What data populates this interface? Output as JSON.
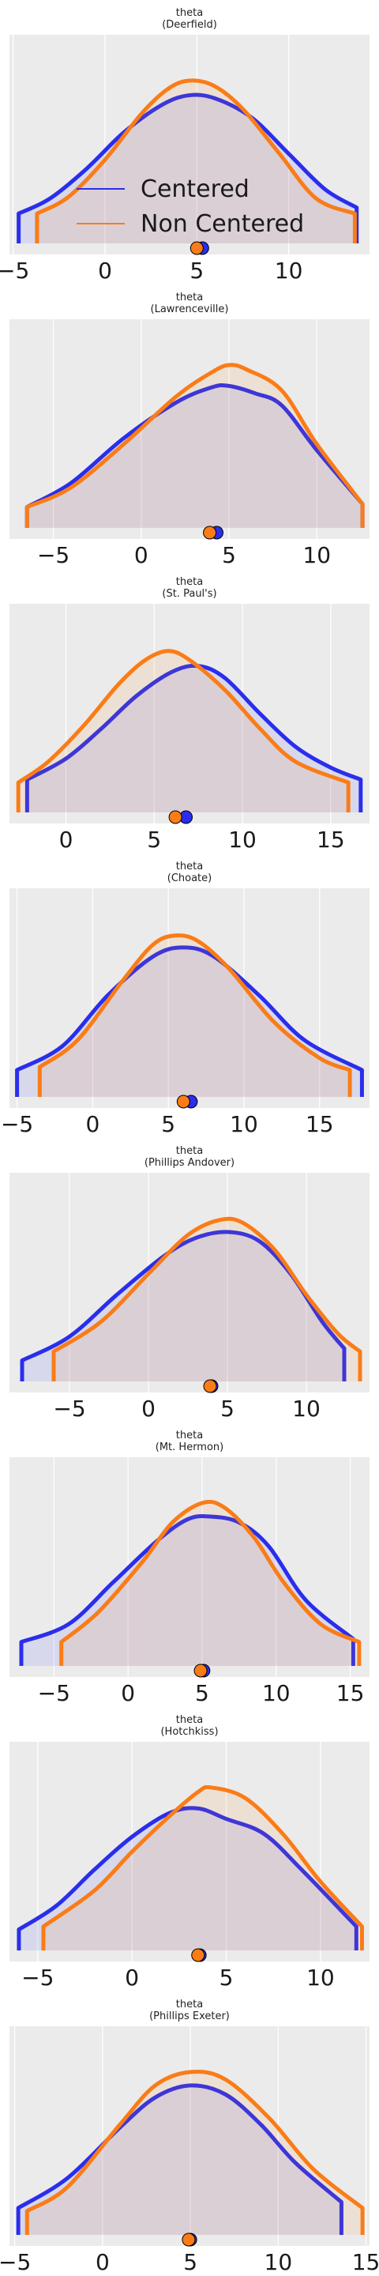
{
  "chart_data": [
    {
      "type": "area",
      "title": "theta",
      "subtitle": "(Deerfield)",
      "xlim": [
        -5.2,
        14.4
      ],
      "xticks": [
        -5,
        0,
        5,
        10
      ],
      "legend": {
        "location": "center-left",
        "entries": [
          "Centered",
          "Non Centered"
        ]
      },
      "series": [
        {
          "name": "Centered",
          "color": "#2a2eec",
          "range": [
            -4.7,
            13.7
          ],
          "mean": 5.3,
          "x": [
            -4.7,
            -3,
            -1,
            1,
            3,
            4.5,
            6,
            8,
            10,
            12,
            13.7
          ],
          "density": [
            0.2,
            0.3,
            0.5,
            0.74,
            0.92,
            0.99,
            0.97,
            0.84,
            0.6,
            0.36,
            0.24
          ]
        },
        {
          "name": "Non Centered",
          "color": "#fa7c17",
          "range": [
            -3.7,
            13.6
          ],
          "mean": 5.0,
          "x": [
            -3.7,
            -2,
            0,
            2,
            3.5,
            4.7,
            6,
            7.5,
            9.5,
            11.5,
            13.6
          ],
          "density": [
            0.2,
            0.31,
            0.56,
            0.87,
            1.04,
            1.09,
            1.05,
            0.9,
            0.6,
            0.3,
            0.2
          ]
        }
      ]
    },
    {
      "type": "area",
      "title": "theta",
      "subtitle": "(Lawrenceville)",
      "xlim": [
        -7.5,
        13.0
      ],
      "xticks": [
        -5,
        0,
        5,
        10
      ],
      "series": [
        {
          "name": "Centered",
          "color": "#2a2eec",
          "range": [
            -6.5,
            12.6
          ],
          "mean": 4.3,
          "x": [
            -6.5,
            -4,
            -1,
            2,
            4,
            5,
            6.5,
            8,
            10,
            12.6
          ],
          "density": [
            0.14,
            0.3,
            0.6,
            0.84,
            0.94,
            0.95,
            0.9,
            0.82,
            0.52,
            0.16
          ]
        },
        {
          "name": "Non Centered",
          "color": "#fa7c17",
          "range": [
            -6.5,
            12.6
          ],
          "mean": 3.9,
          "x": [
            -6.5,
            -4,
            -1,
            2,
            4,
            5,
            6,
            8,
            10,
            12.6
          ],
          "density": [
            0.14,
            0.27,
            0.56,
            0.88,
            1.04,
            1.09,
            1.06,
            0.92,
            0.56,
            0.16
          ]
        }
      ]
    },
    {
      "type": "area",
      "title": "theta",
      "subtitle": "(St. Paul's)",
      "xlim": [
        -3.2,
        17.2
      ],
      "xticks": [
        0,
        5,
        10,
        15
      ],
      "series": [
        {
          "name": "Centered",
          "color": "#2a2eec",
          "range": [
            -2.2,
            16.7
          ],
          "mean": 6.8,
          "x": [
            -2.2,
            0,
            2,
            4,
            6,
            7.5,
            9,
            11,
            13,
            15,
            16.7
          ],
          "density": [
            0.22,
            0.36,
            0.56,
            0.78,
            0.94,
            0.98,
            0.9,
            0.66,
            0.44,
            0.3,
            0.22
          ]
        },
        {
          "name": "Non Centered",
          "color": "#fa7c17",
          "range": [
            -2.7,
            16.0
          ],
          "mean": 6.2,
          "x": [
            -2.7,
            -1,
            1,
            3,
            4.5,
            5.8,
            7,
            9,
            11,
            13,
            16
          ],
          "density": [
            0.2,
            0.34,
            0.58,
            0.86,
            1.02,
            1.08,
            1.02,
            0.82,
            0.56,
            0.34,
            0.2
          ]
        }
      ]
    },
    {
      "type": "area",
      "title": "theta",
      "subtitle": "(Choate)",
      "xlim": [
        -5.5,
        18.3
      ],
      "xticks": [
        -5,
        0,
        5,
        10,
        15
      ],
      "series": [
        {
          "name": "Centered",
          "color": "#2a2eec",
          "range": [
            -5.0,
            17.8
          ],
          "mean": 6.5,
          "x": [
            -5,
            -2,
            1,
            4,
            6,
            8,
            11,
            14,
            17.8
          ],
          "density": [
            0.18,
            0.34,
            0.68,
            0.94,
            1.0,
            0.94,
            0.68,
            0.38,
            0.18
          ]
        },
        {
          "name": "Non Centered",
          "color": "#fa7c17",
          "range": [
            -3.5,
            17.0
          ],
          "mean": 6.0,
          "x": [
            -3.5,
            -1,
            2,
            4,
            5.5,
            7,
            9,
            12,
            15,
            17
          ],
          "density": [
            0.2,
            0.38,
            0.78,
            1.02,
            1.08,
            1.04,
            0.86,
            0.5,
            0.26,
            0.18
          ]
        }
      ]
    },
    {
      "type": "area",
      "title": "theta",
      "subtitle": "(Phillips Andover)",
      "xlim": [
        -8.8,
        14.0
      ],
      "xticks": [
        -5,
        0,
        5,
        10
      ],
      "series": [
        {
          "name": "Centered",
          "color": "#2a2eec",
          "range": [
            -8.0,
            12.4
          ],
          "mean": 4.0,
          "x": [
            -8,
            -5,
            -2,
            1,
            3,
            5,
            7,
            9,
            11,
            12.4
          ],
          "density": [
            0.14,
            0.3,
            0.58,
            0.84,
            0.96,
            1.0,
            0.94,
            0.72,
            0.4,
            0.22
          ]
        },
        {
          "name": "Non Centered",
          "color": "#fa7c17",
          "range": [
            -6.0,
            13.4
          ],
          "mean": 3.9,
          "x": [
            -6,
            -3,
            0,
            2.5,
            4.5,
            6,
            8,
            10,
            12,
            13.4
          ],
          "density": [
            0.2,
            0.4,
            0.72,
            0.98,
            1.08,
            1.06,
            0.88,
            0.58,
            0.32,
            0.2
          ]
        }
      ]
    },
    {
      "type": "area",
      "title": "theta",
      "subtitle": "(Mt. Hermon)",
      "xlim": [
        -8.0,
        16.3
      ],
      "xticks": [
        -5,
        0,
        5,
        10,
        15
      ],
      "series": [
        {
          "name": "Centered",
          "color": "#2a2eec",
          "range": [
            -7.2,
            15.2
          ],
          "mean": 5.1,
          "x": [
            -7.2,
            -4,
            -1,
            2,
            4,
            5.5,
            7.5,
            9.5,
            12,
            15.2
          ],
          "density": [
            0.16,
            0.28,
            0.56,
            0.84,
            0.98,
            1.0,
            0.96,
            0.8,
            0.44,
            0.18
          ]
        },
        {
          "name": "Non Centered",
          "color": "#fa7c17",
          "range": [
            -4.5,
            15.6
          ],
          "mean": 4.9,
          "x": [
            -4.5,
            -2,
            1,
            3,
            5,
            6.5,
            8.5,
            10.5,
            13,
            15.6
          ],
          "density": [
            0.16,
            0.36,
            0.7,
            0.96,
            1.09,
            1.06,
            0.86,
            0.56,
            0.28,
            0.16
          ]
        }
      ]
    },
    {
      "type": "area",
      "title": "theta",
      "subtitle": "(Hotchkiss)",
      "xlim": [
        -6.5,
        12.6
      ],
      "xticks": [
        -5,
        0,
        5,
        10
      ],
      "series": [
        {
          "name": "Centered",
          "color": "#2a2eec",
          "range": [
            -6.0,
            11.9
          ],
          "mean": 3.6,
          "x": [
            -6,
            -4,
            -2,
            0,
            2,
            3.5,
            5,
            7,
            9,
            11.9
          ],
          "density": [
            0.14,
            0.3,
            0.54,
            0.76,
            0.92,
            0.95,
            0.88,
            0.78,
            0.54,
            0.16
          ]
        },
        {
          "name": "Non Centered",
          "color": "#fa7c17",
          "range": [
            -4.7,
            12.2
          ],
          "mean": 3.5,
          "x": [
            -4.7,
            -2,
            0,
            2,
            3.5,
            4.2,
            6,
            8,
            10,
            12.2
          ],
          "density": [
            0.16,
            0.4,
            0.66,
            0.9,
            1.06,
            1.09,
            1.02,
            0.78,
            0.46,
            0.16
          ]
        }
      ]
    },
    {
      "type": "area",
      "title": "theta",
      "subtitle": "(Phillips Exeter)",
      "xlim": [
        -5.3,
        15.2
      ],
      "xticks": [
        -5,
        0,
        5,
        10,
        15
      ],
      "series": [
        {
          "name": "Centered",
          "color": "#2a2eec",
          "range": [
            -4.8,
            13.6
          ],
          "mean": 5.0,
          "x": [
            -4.8,
            -2,
            1,
            3,
            5,
            7,
            9,
            11,
            13.6
          ],
          "density": [
            0.18,
            0.38,
            0.72,
            0.92,
            1.0,
            0.94,
            0.74,
            0.48,
            0.22
          ]
        },
        {
          "name": "Non Centered",
          "color": "#fa7c17",
          "range": [
            -4.3,
            14.8
          ],
          "mean": 4.9,
          "x": [
            -4.3,
            -2,
            1,
            3,
            5,
            7,
            9.5,
            12,
            14.8
          ],
          "density": [
            0.16,
            0.32,
            0.74,
            1.0,
            1.09,
            1.04,
            0.78,
            0.44,
            0.18
          ]
        }
      ]
    }
  ]
}
